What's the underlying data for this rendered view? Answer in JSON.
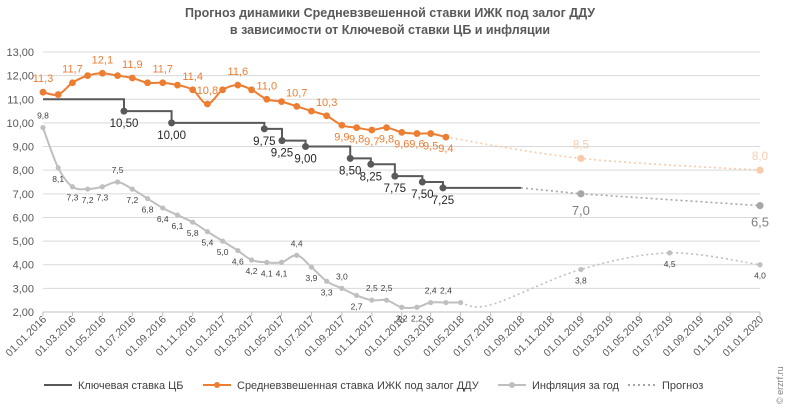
{
  "chart_data": {
    "type": "line",
    "title": [
      "Прогноз динамики Средневзвешенной ставки ИЖК под залог ДДУ",
      "в зависимости от Ключевой ставки ЦБ и инфляции"
    ],
    "y_axis": {
      "min": 2,
      "max": 13,
      "step": 1,
      "tick_labels": [
        "2,00",
        "3,00",
        "4,00",
        "5,00",
        "6,00",
        "7,00",
        "8,00",
        "9,00",
        "10,00",
        "11,00",
        "12,00",
        "13,00"
      ]
    },
    "x_axis": {
      "tick_labels": [
        "01.01.2016",
        "01.03.2016",
        "01.05.2016",
        "01.07.2016",
        "01.09.2016",
        "01.11.2016",
        "01.01.2017",
        "01.03.2017",
        "01.05.2017",
        "01.07.2017",
        "01.09.2017",
        "01.11.2017",
        "01.01.2018",
        "01.03.2018",
        "01.05.2018",
        "01.07.2018",
        "01.09.2018",
        "01.11.2018",
        "01.01.2019",
        "01.03.2019",
        "01.05.2019",
        "01.07.2019",
        "01.09.2019",
        "01.11.2019",
        "01.01.2020"
      ]
    },
    "grid": "horizontal",
    "legend_position": "bottom",
    "colors": {
      "key_rate": "#595959",
      "mortgage": "#ED7D31",
      "mortgage_forecast": "#F8CBAD",
      "inflation": "#BFBFBF",
      "forecast_grey": "#A6A6A6"
    },
    "series": [
      {
        "name": "Ключевая ставка ЦБ",
        "kind": "step",
        "points": [
          [
            "2016-01-01",
            11.0
          ],
          [
            "2016-06-14",
            10.5
          ],
          [
            "2016-09-19",
            10.0
          ],
          [
            "2017-03-27",
            9.75
          ],
          [
            "2017-05-02",
            9.25
          ],
          [
            "2017-06-19",
            9.0
          ],
          [
            "2017-09-18",
            8.5
          ],
          [
            "2017-10-30",
            8.25
          ],
          [
            "2017-12-18",
            7.75
          ],
          [
            "2018-02-12",
            7.5
          ],
          [
            "2018-03-26",
            7.25
          ],
          [
            "2018-09-01",
            7.25
          ]
        ],
        "labels": [
          [
            "2016-06-14",
            10.5,
            "10,50"
          ],
          [
            "2016-09-19",
            10.0,
            "10,00"
          ],
          [
            "2017-03-27",
            9.75,
            "9,75"
          ],
          [
            "2017-05-02",
            9.25,
            "9,25"
          ],
          [
            "2017-06-19",
            9.0,
            "9,00"
          ],
          [
            "2017-09-18",
            8.5,
            "8,50"
          ],
          [
            "2017-10-30",
            8.25,
            "8,25"
          ],
          [
            "2017-12-18",
            7.75,
            "7,75"
          ],
          [
            "2018-02-12",
            7.5,
            "7,50"
          ],
          [
            "2018-03-26",
            7.25,
            "7,25"
          ]
        ],
        "forecast": [
          [
            "2018-09-01",
            7.25
          ],
          [
            "2019-01-01",
            7.0
          ],
          [
            "2020-01-01",
            6.5
          ]
        ],
        "forecast_labels": [
          [
            "2019-01-01",
            7.0,
            "7,0"
          ],
          [
            "2020-01-01",
            6.5,
            "6,5"
          ]
        ]
      },
      {
        "name": "Средневзвешенная ставка ИЖК под залог ДДУ",
        "points": [
          [
            "2016-01-01",
            11.3
          ],
          [
            "2016-02-01",
            11.2
          ],
          [
            "2016-03-01",
            11.7
          ],
          [
            "2016-04-01",
            12.0
          ],
          [
            "2016-05-01",
            12.1
          ],
          [
            "2016-06-01",
            12.0
          ],
          [
            "2016-07-01",
            11.9
          ],
          [
            "2016-08-01",
            11.7
          ],
          [
            "2016-09-01",
            11.7
          ],
          [
            "2016-10-01",
            11.6
          ],
          [
            "2016-11-01",
            11.4
          ],
          [
            "2016-12-01",
            10.8
          ],
          [
            "2017-01-01",
            11.4
          ],
          [
            "2017-02-01",
            11.6
          ],
          [
            "2017-03-01",
            11.4
          ],
          [
            "2017-04-01",
            11.0
          ],
          [
            "2017-05-01",
            10.9
          ],
          [
            "2017-06-01",
            10.7
          ],
          [
            "2017-07-01",
            10.5
          ],
          [
            "2017-08-01",
            10.3
          ],
          [
            "2017-09-01",
            9.9
          ],
          [
            "2017-10-01",
            9.8
          ],
          [
            "2017-11-01",
            9.7
          ],
          [
            "2017-12-01",
            9.8
          ],
          [
            "2018-01-01",
            9.6
          ],
          [
            "2018-02-01",
            9.55
          ],
          [
            "2018-03-01",
            9.55
          ],
          [
            "2018-04-01",
            9.4
          ]
        ],
        "labels": [
          [
            "2016-01-01",
            11.3,
            "11,3"
          ],
          [
            "2016-03-01",
            11.7,
            "11,7"
          ],
          [
            "2016-05-01",
            12.1,
            "12,1"
          ],
          [
            "2016-07-01",
            11.9,
            "11,9"
          ],
          [
            "2016-09-01",
            11.7,
            "11,7"
          ],
          [
            "2016-11-01",
            11.4,
            "11,4"
          ],
          [
            "2016-12-01",
            10.8,
            "10,8"
          ],
          [
            "2017-02-01",
            11.6,
            "11,6"
          ],
          [
            "2017-04-01",
            11.0,
            "11,0"
          ],
          [
            "2017-06-01",
            10.7,
            "10,7"
          ],
          [
            "2017-08-01",
            10.3,
            "10,3"
          ],
          [
            "2017-09-01",
            9.9,
            "9,9"
          ],
          [
            "2017-10-01",
            9.8,
            "9,8"
          ],
          [
            "2017-11-01",
            9.7,
            "9,7"
          ],
          [
            "2017-12-01",
            9.8,
            "9,8"
          ],
          [
            "2018-01-01",
            9.6,
            "9,6"
          ],
          [
            "2018-02-01",
            9.6,
            "9,6"
          ],
          [
            "2018-03-01",
            9.5,
            "9,5"
          ],
          [
            "2018-04-01",
            9.4,
            "9,4"
          ]
        ],
        "forecast": [
          [
            "2018-04-01",
            9.4
          ],
          [
            "2019-01-01",
            8.5
          ],
          [
            "2020-01-01",
            8.0
          ]
        ],
        "forecast_labels": [
          [
            "2019-01-01",
            8.5,
            "8,5"
          ],
          [
            "2020-01-01",
            8.0,
            "8,0"
          ]
        ]
      },
      {
        "name": "Инфляция за год",
        "points": [
          [
            "2016-01-01",
            9.8
          ],
          [
            "2016-02-01",
            8.1
          ],
          [
            "2016-03-01",
            7.3
          ],
          [
            "2016-04-01",
            7.2
          ],
          [
            "2016-05-01",
            7.3
          ],
          [
            "2016-06-01",
            7.5
          ],
          [
            "2016-07-01",
            7.2
          ],
          [
            "2016-08-01",
            6.8
          ],
          [
            "2016-09-01",
            6.4
          ],
          [
            "2016-10-01",
            6.1
          ],
          [
            "2016-11-01",
            5.8
          ],
          [
            "2016-12-01",
            5.4
          ],
          [
            "2017-01-01",
            5.0
          ],
          [
            "2017-02-01",
            4.6
          ],
          [
            "2017-03-01",
            4.2
          ],
          [
            "2017-04-01",
            4.1
          ],
          [
            "2017-05-01",
            4.1
          ],
          [
            "2017-06-01",
            4.4
          ],
          [
            "2017-07-01",
            3.9
          ],
          [
            "2017-08-01",
            3.3
          ],
          [
            "2017-09-01",
            3.0
          ],
          [
            "2017-10-01",
            2.7
          ],
          [
            "2017-11-01",
            2.5
          ],
          [
            "2017-12-01",
            2.5
          ],
          [
            "2018-01-01",
            2.2
          ],
          [
            "2018-02-01",
            2.2
          ],
          [
            "2018-03-01",
            2.4
          ],
          [
            "2018-04-01",
            2.4
          ],
          [
            "2018-05-01",
            2.4
          ]
        ],
        "labels": [
          [
            "2016-01-01",
            9.8,
            "9,8"
          ],
          [
            "2016-02-01",
            8.1,
            "8,1"
          ],
          [
            "2016-03-01",
            7.3,
            "7,3"
          ],
          [
            "2016-04-01",
            7.2,
            "7,2"
          ],
          [
            "2016-05-01",
            7.3,
            "7,3"
          ],
          [
            "2016-06-01",
            7.5,
            "7,5"
          ],
          [
            "2016-07-01",
            7.2,
            "7,2"
          ],
          [
            "2016-08-01",
            6.8,
            "6,8"
          ],
          [
            "2016-09-01",
            6.4,
            "6,4"
          ],
          [
            "2016-10-01",
            6.1,
            "6,1"
          ],
          [
            "2016-11-01",
            5.8,
            "5,8"
          ],
          [
            "2016-12-01",
            5.4,
            "5,4"
          ],
          [
            "2017-01-01",
            5.0,
            "5,0"
          ],
          [
            "2017-02-01",
            4.6,
            "4,6"
          ],
          [
            "2017-03-01",
            4.2,
            "4,2"
          ],
          [
            "2017-04-01",
            4.1,
            "4,1"
          ],
          [
            "2017-05-01",
            4.1,
            "4,1"
          ],
          [
            "2017-06-01",
            4.4,
            "4,4"
          ],
          [
            "2017-07-01",
            3.9,
            "3,9"
          ],
          [
            "2017-08-01",
            3.3,
            "3,3"
          ],
          [
            "2017-09-01",
            3.0,
            "3,0"
          ],
          [
            "2017-10-01",
            2.7,
            "2,7"
          ],
          [
            "2017-11-01",
            2.5,
            "2,5"
          ],
          [
            "2017-12-01",
            2.5,
            "2,5"
          ],
          [
            "2018-01-01",
            2.2,
            "2,2"
          ],
          [
            "2018-02-01",
            2.2,
            "2,2"
          ],
          [
            "2018-03-01",
            2.4,
            "2,4"
          ],
          [
            "2018-04-01",
            2.4,
            "2,4"
          ]
        ],
        "forecast": [
          [
            "2018-05-01",
            2.4
          ],
          [
            "2018-07-01",
            2.3
          ],
          [
            "2019-01-01",
            3.8
          ],
          [
            "2019-07-01",
            4.5
          ],
          [
            "2020-01-01",
            4.0
          ]
        ],
        "forecast_labels": [
          [
            "2019-01-01",
            3.8,
            "3,8"
          ],
          [
            "2019-07-01",
            4.5,
            "4,5"
          ],
          [
            "2020-01-01",
            4.0,
            "4,0"
          ]
        ]
      }
    ],
    "legend": [
      "Ключевая ставка ЦБ",
      "Средневзвешенная ставка ИЖК под залог ДДУ",
      "Инфляция за год",
      "Прогноз"
    ]
  },
  "watermark": "© erzrf.ru"
}
